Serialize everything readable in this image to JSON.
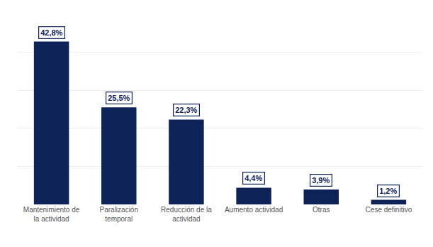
{
  "chart_data": {
    "type": "bar",
    "categories": [
      "Mantenimiento de\nla actividad",
      "Paralización\ntemporal",
      "Reducción de la\nactividad",
      "Aumento actividad",
      "Otras",
      "Cese definitivo"
    ],
    "values": [
      42.8,
      25.5,
      22.3,
      4.4,
      3.9,
      1.2
    ],
    "value_labels": [
      "42,8%",
      "25,5%",
      "22,3%",
      "4,4%",
      "3,9%",
      "1,2%"
    ],
    "color": "#0d2257",
    "ylim": [
      0,
      50
    ],
    "yticks": [
      0,
      10,
      20,
      30,
      40,
      50
    ],
    "grid": true,
    "data_labels": true,
    "tick_labels": "x"
  }
}
